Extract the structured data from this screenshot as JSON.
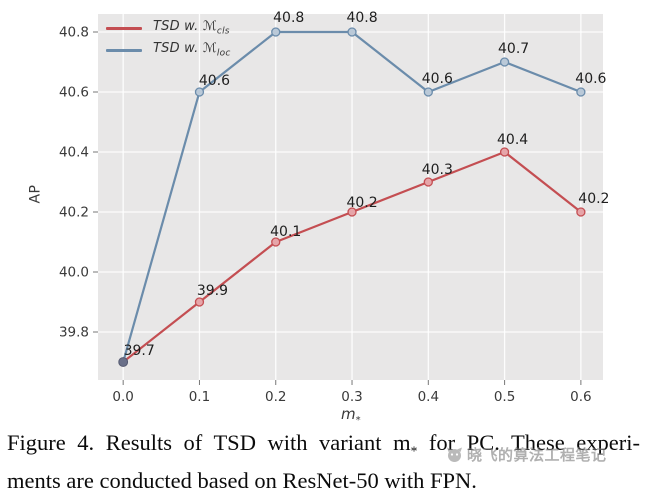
{
  "chart_data": {
    "type": "line",
    "title": "",
    "xlabel": "m_*",
    "ylabel": "AP",
    "x": [
      0.0,
      0.1,
      0.2,
      0.3,
      0.4,
      0.5,
      0.6
    ],
    "series": [
      {
        "name": "TSD w. M_cls",
        "legend_prefix": "TSD w. ",
        "legend_symbol": "ℳ",
        "legend_sub": "cls",
        "color": "#c44e52",
        "marker_fill": "#e6a5a9",
        "values": [
          39.7,
          39.9,
          40.1,
          40.2,
          40.3,
          40.4,
          40.2
        ]
      },
      {
        "name": "TSD w. M_loc",
        "legend_prefix": "TSD w. ",
        "legend_symbol": "ℳ",
        "legend_sub": "loc",
        "color": "#6b8cab",
        "marker_fill": "#bac9d8",
        "values": [
          39.7,
          40.6,
          40.8,
          40.8,
          40.6,
          40.7,
          40.6
        ]
      }
    ],
    "point_labels": [
      [
        "39.7",
        "39.9",
        "40.1",
        "40.2",
        "40.3",
        "40.4",
        "40.2"
      ],
      [
        null,
        "40.6",
        "40.8",
        "40.8",
        "40.6",
        "40.7",
        "40.6"
      ]
    ],
    "xticks": [
      "0.0",
      "0.1",
      "0.2",
      "0.3",
      "0.4",
      "0.5",
      "0.6"
    ],
    "yticks": [
      "39.8",
      "40.0",
      "40.2",
      "40.4",
      "40.6",
      "40.8"
    ],
    "ytick_values": [
      39.8,
      40.0,
      40.2,
      40.4,
      40.6,
      40.8
    ],
    "xlim": [
      -0.033,
      0.629
    ],
    "ylim": [
      39.64,
      40.86
    ],
    "grid": true,
    "legend_position": "upper left",
    "plot_bg": "#e8e7e7",
    "grid_color": "rgba(255,255,255,0.9)",
    "tick_color": "#777777",
    "tick_label_color": "#3a3a3a",
    "point_label_color": "#1f1f1f",
    "shared_start_marker": "#6a7089"
  },
  "labels": {
    "xlabel_main": "m",
    "xlabel_sub": "*",
    "ylabel": "AP"
  },
  "caption": {
    "line1_pre": "Figure 4. Results of TSD with variant m",
    "line1_sub": "*",
    "line1_post": " for PC. These experi-",
    "line2": "ments are conducted based on ResNet-50 with FPN."
  },
  "watermark": {
    "logo": "wechat-account-logo",
    "text": "晓飞的算法工程笔记"
  }
}
